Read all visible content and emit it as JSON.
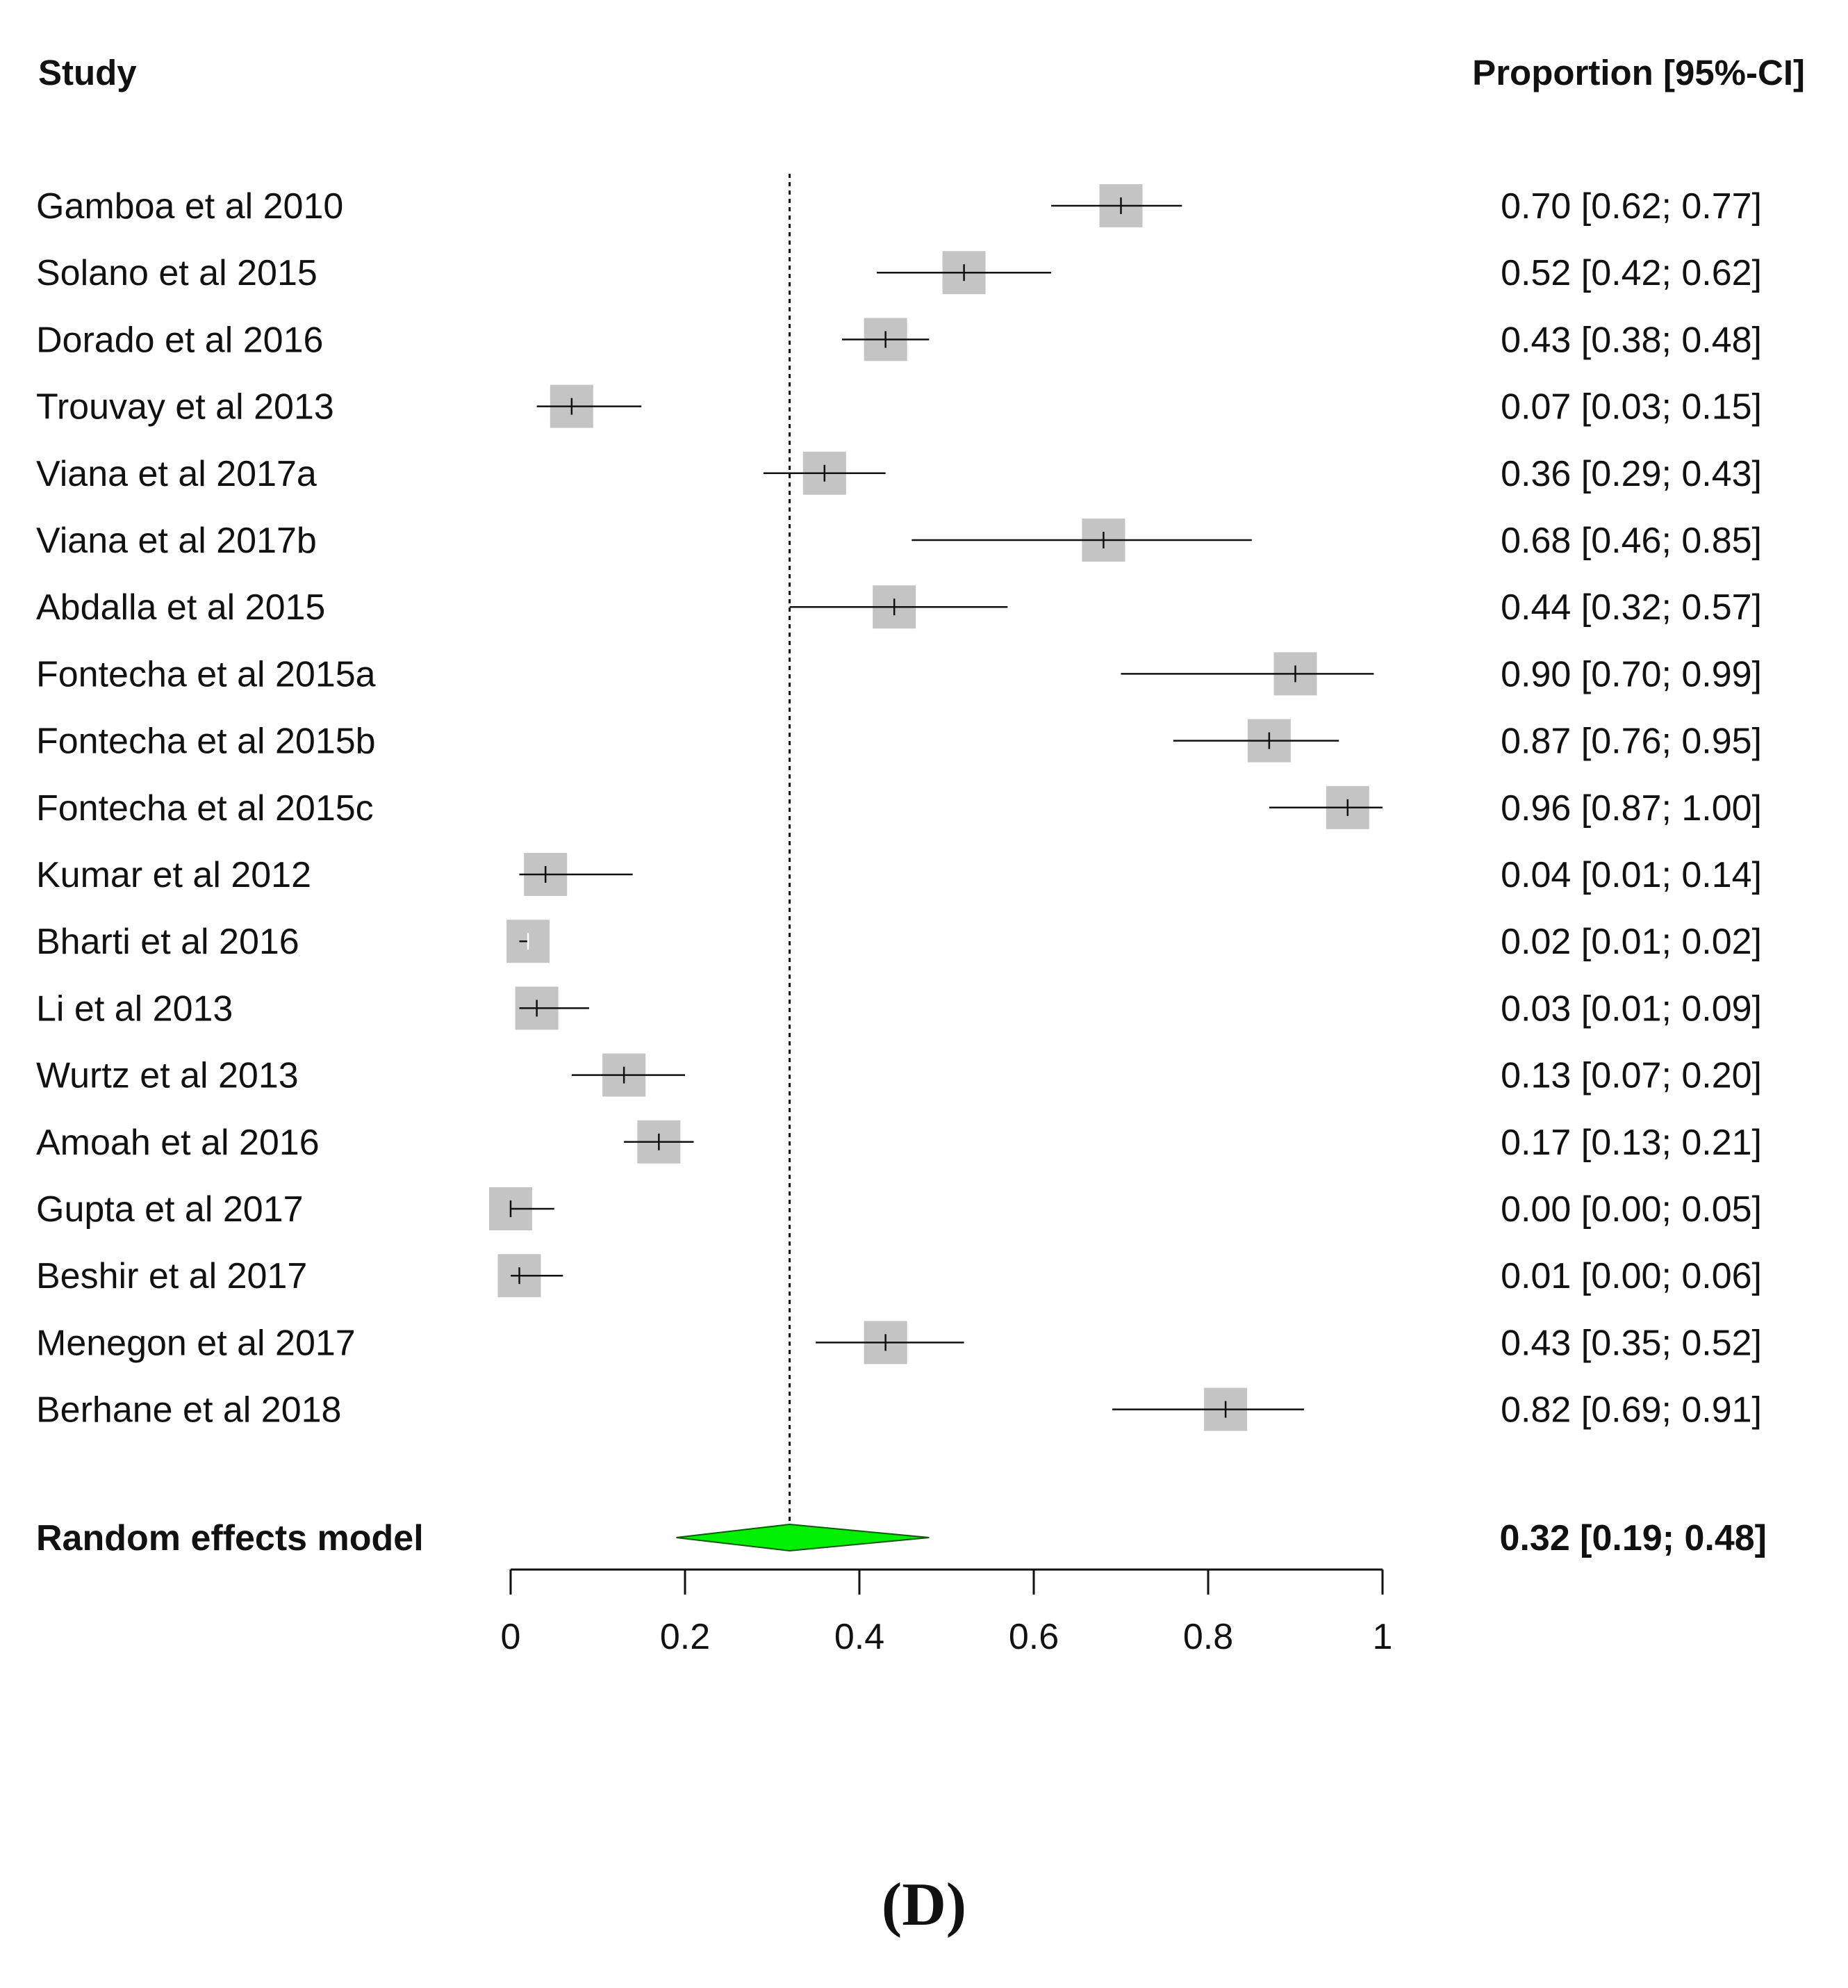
{
  "chart_data": {
    "type": "forest",
    "header": {
      "study": "Study",
      "effect": "Proportion [95%-CI]"
    },
    "studies": [
      {
        "label": "Gamboa et al 2010",
        "estimate": 0.7,
        "lower": 0.62,
        "upper": 0.77,
        "ci_text": "0.70 [0.62; 0.77]"
      },
      {
        "label": "Solano et al 2015",
        "estimate": 0.52,
        "lower": 0.42,
        "upper": 0.62,
        "ci_text": "0.52 [0.42; 0.62]"
      },
      {
        "label": "Dorado et al 2016",
        "estimate": 0.43,
        "lower": 0.38,
        "upper": 0.48,
        "ci_text": "0.43 [0.38; 0.48]"
      },
      {
        "label": "Trouvay et al 2013",
        "estimate": 0.07,
        "lower": 0.03,
        "upper": 0.15,
        "ci_text": "0.07 [0.03; 0.15]"
      },
      {
        "label": "Viana et al 2017a",
        "estimate": 0.36,
        "lower": 0.29,
        "upper": 0.43,
        "ci_text": "0.36 [0.29; 0.43]"
      },
      {
        "label": "Viana et al 2017b",
        "estimate": 0.68,
        "lower": 0.46,
        "upper": 0.85,
        "ci_text": "0.68 [0.46; 0.85]"
      },
      {
        "label": "Abdalla et al 2015",
        "estimate": 0.44,
        "lower": 0.32,
        "upper": 0.57,
        "ci_text": "0.44 [0.32; 0.57]"
      },
      {
        "label": "Fontecha et al 2015a",
        "estimate": 0.9,
        "lower": 0.7,
        "upper": 0.99,
        "ci_text": "0.90 [0.70; 0.99]"
      },
      {
        "label": "Fontecha et al 2015b",
        "estimate": 0.87,
        "lower": 0.76,
        "upper": 0.95,
        "ci_text": "0.87 [0.76; 0.95]"
      },
      {
        "label": "Fontecha et al 2015c",
        "estimate": 0.96,
        "lower": 0.87,
        "upper": 1.0,
        "ci_text": "0.96 [0.87; 1.00]"
      },
      {
        "label": "Kumar et al 2012",
        "estimate": 0.04,
        "lower": 0.01,
        "upper": 0.14,
        "ci_text": "0.04 [0.01; 0.14]"
      },
      {
        "label": "Bharti et al 2016",
        "estimate": 0.02,
        "lower": 0.01,
        "upper": 0.02,
        "ci_text": "0.02 [0.01; 0.02]"
      },
      {
        "label": "Li et al 2013",
        "estimate": 0.03,
        "lower": 0.01,
        "upper": 0.09,
        "ci_text": "0.03 [0.01; 0.09]"
      },
      {
        "label": "Wurtz et al 2013",
        "estimate": 0.13,
        "lower": 0.07,
        "upper": 0.2,
        "ci_text": "0.13 [0.07; 0.20]"
      },
      {
        "label": "Amoah et al 2016",
        "estimate": 0.17,
        "lower": 0.13,
        "upper": 0.21,
        "ci_text": "0.17 [0.13; 0.21]"
      },
      {
        "label": "Gupta et al 2017",
        "estimate": 0.0,
        "lower": 0.0,
        "upper": 0.05,
        "ci_text": "0.00 [0.00; 0.05]"
      },
      {
        "label": "Beshir et al 2017",
        "estimate": 0.01,
        "lower": 0.0,
        "upper": 0.06,
        "ci_text": "0.01 [0.00; 0.06]"
      },
      {
        "label": "Menegon et al 2017",
        "estimate": 0.43,
        "lower": 0.35,
        "upper": 0.52,
        "ci_text": "0.43 [0.35; 0.52]"
      },
      {
        "label": "Berhane et al 2018",
        "estimate": 0.82,
        "lower": 0.69,
        "upper": 0.91,
        "ci_text": "0.82 [0.69; 0.91]"
      }
    ],
    "pooled": {
      "label": "Random effects model",
      "estimate": 0.32,
      "lower": 0.19,
      "upper": 0.48,
      "ci_text": "0.32 [0.19; 0.48]"
    },
    "reference_line": 0.32,
    "x_range": [
      0,
      1
    ],
    "x_ticks": [
      0,
      0.2,
      0.4,
      0.6,
      0.8,
      1
    ],
    "x_tick_labels": [
      "0",
      "0.2",
      "0.4",
      "0.6",
      "0.8",
      "1"
    ],
    "colors": {
      "square": "#c4c4c4",
      "line": "#111111",
      "diamond_fill": "#00ee00",
      "diamond_stroke": "#0a5a0a"
    }
  },
  "panel_label": "(D)"
}
